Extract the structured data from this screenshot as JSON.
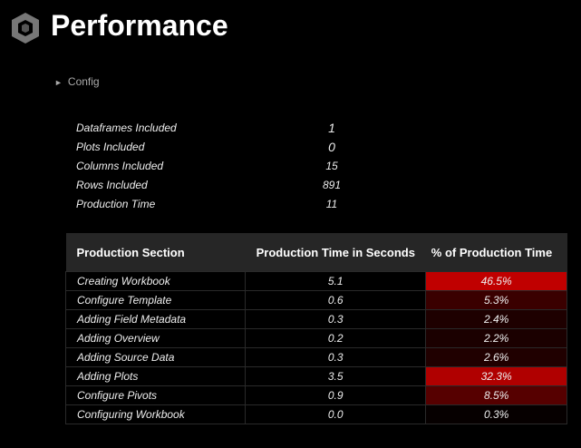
{
  "header": {
    "title": "Performance"
  },
  "config": {
    "label": "Config"
  },
  "summary": [
    {
      "label": "Dataframes Included",
      "value": "1"
    },
    {
      "label": "Plots Included",
      "value": "0"
    },
    {
      "label": "Columns Included",
      "value": "15"
    },
    {
      "label": "Rows Included",
      "value": "891"
    },
    {
      "label": "Production Time",
      "value": "11"
    }
  ],
  "table": {
    "columns": [
      "Production Section",
      "Production Time in Seconds",
      "% of Production Time"
    ],
    "rows": [
      {
        "cells": [
          "Creating Workbook",
          "5.1",
          "46.5%"
        ],
        "color": "#c00000"
      },
      {
        "cells": [
          "Configure Template",
          "0.6",
          "5.3%"
        ],
        "color": "#3a0000"
      },
      {
        "cells": [
          "Adding Field Metadata",
          "0.3",
          "2.4%"
        ],
        "color": "#1e0000"
      },
      {
        "cells": [
          "Adding Overview",
          "0.2",
          "2.2%"
        ],
        "color": "#1b0000"
      },
      {
        "cells": [
          "Adding Source Data",
          "0.3",
          "2.6%"
        ],
        "color": "#200000"
      },
      {
        "cells": [
          "Adding Plots",
          "3.5",
          "32.3%"
        ],
        "color": "#b00000"
      },
      {
        "cells": [
          "Configure Pivots",
          "0.9",
          "8.5%"
        ],
        "color": "#560000"
      },
      {
        "cells": [
          "Configuring Workbook",
          "0.0",
          "0.3%"
        ],
        "color": "#060000"
      }
    ]
  }
}
